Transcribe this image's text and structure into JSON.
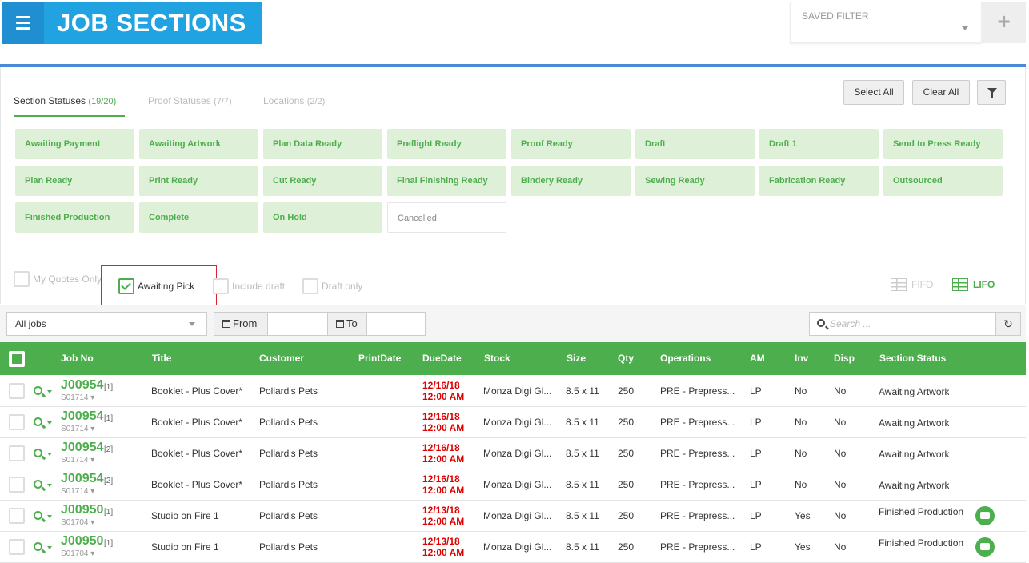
{
  "header": {
    "title": "JOB SECTIONS",
    "saved_filter_label": "SAVED FILTER",
    "add_label": "+"
  },
  "tabs": [
    {
      "label": "Section Statuses",
      "count": "(19/20)"
    },
    {
      "label": "Proof Statuses",
      "count": "(7/7)"
    },
    {
      "label": "Locations",
      "count": "(2/2)"
    }
  ],
  "actions": {
    "select_all": "Select All",
    "clear_all": "Clear All"
  },
  "statuses": [
    {
      "label": "Awaiting Payment",
      "on": true
    },
    {
      "label": "Awaiting Artwork",
      "on": true
    },
    {
      "label": "Plan Data Ready",
      "on": true
    },
    {
      "label": "Preflight Ready",
      "on": true
    },
    {
      "label": "Proof Ready",
      "on": true
    },
    {
      "label": "Draft",
      "on": true
    },
    {
      "label": "Draft 1",
      "on": true
    },
    {
      "label": "Send to Press Ready",
      "on": true
    },
    {
      "label": "Plan Ready",
      "on": true
    },
    {
      "label": "Print Ready",
      "on": true
    },
    {
      "label": "Cut Ready",
      "on": true
    },
    {
      "label": "Final Finishing Ready",
      "on": true
    },
    {
      "label": "Bindery Ready",
      "on": true
    },
    {
      "label": "Sewing Ready",
      "on": true
    },
    {
      "label": "Fabrication Ready",
      "on": true
    },
    {
      "label": "Outsourced",
      "on": true
    },
    {
      "label": "Finished Production",
      "on": true
    },
    {
      "label": "Complete",
      "on": true
    },
    {
      "label": "On Hold",
      "on": true
    },
    {
      "label": "Cancelled",
      "on": false
    }
  ],
  "options": {
    "my_quotes_only": "My Quotes Only",
    "awaiting_pick": "Awaiting Pick",
    "include_draft": "Include draft",
    "draft_only": "Draft only"
  },
  "view": {
    "fifo": "FIFO",
    "lifo": "LIFO"
  },
  "toolbar": {
    "jobs_select": "All jobs",
    "from_label": "From",
    "to_label": "To",
    "search_placeholder": "Search ..."
  },
  "columns": [
    "Job No",
    "Title",
    "Customer",
    "PrintDate",
    "DueDate",
    "Stock",
    "Size",
    "Qty",
    "Operations",
    "AM",
    "Inv",
    "Disp",
    "Section Status"
  ],
  "rows": [
    {
      "job": "J00954",
      "idx": "[1]",
      "sec": "S01714",
      "title": "Booklet - Plus Cover*",
      "customer": "Pollard's Pets",
      "due_date": "12/16/18",
      "due_time": "12:00 AM",
      "stock": "Monza Digi Gl...",
      "size": "8.5 x 11",
      "qty": "250",
      "ops": "PRE - Prepress...",
      "am": "LP",
      "inv": "No",
      "disp": "No",
      "status": "Awaiting Artwork",
      "chat": false
    },
    {
      "job": "J00954",
      "idx": "[1]",
      "sec": "S01714",
      "title": "Booklet - Plus Cover*",
      "customer": "Pollard's Pets",
      "due_date": "12/16/18",
      "due_time": "12:00 AM",
      "stock": "Monza Digi Gl...",
      "size": "8.5 x 11",
      "qty": "250",
      "ops": "PRE - Prepress...",
      "am": "LP",
      "inv": "No",
      "disp": "No",
      "status": "Awaiting Artwork",
      "chat": false
    },
    {
      "job": "J00954",
      "idx": "[2]",
      "sec": "S01714",
      "title": "Booklet - Plus Cover*",
      "customer": "Pollard's Pets",
      "due_date": "12/16/18",
      "due_time": "12:00 AM",
      "stock": "Monza Digi Gl...",
      "size": "8.5 x 11",
      "qty": "250",
      "ops": "PRE - Prepress...",
      "am": "LP",
      "inv": "No",
      "disp": "No",
      "status": "Awaiting Artwork",
      "chat": false
    },
    {
      "job": "J00954",
      "idx": "[2]",
      "sec": "S01714",
      "title": "Booklet - Plus Cover*",
      "customer": "Pollard's Pets",
      "due_date": "12/16/18",
      "due_time": "12:00 AM",
      "stock": "Monza Digi Gl...",
      "size": "8.5 x 11",
      "qty": "250",
      "ops": "PRE - Prepress...",
      "am": "LP",
      "inv": "No",
      "disp": "No",
      "status": "Awaiting Artwork",
      "chat": false
    },
    {
      "job": "J00950",
      "idx": "[1]",
      "sec": "S01704",
      "title": "Studio on Fire 1",
      "customer": "Pollard's Pets",
      "due_date": "12/13/18",
      "due_time": "12:00 AM",
      "stock": "Monza Digi Gl...",
      "size": "8.5 x 11",
      "qty": "250",
      "ops": "PRE - Prepress...",
      "am": "LP",
      "inv": "Yes",
      "disp": "No",
      "status": "Finished Production",
      "chat": true
    },
    {
      "job": "J00950",
      "idx": "[1]",
      "sec": "S01704",
      "title": "Studio on Fire 1",
      "customer": "Pollard's Pets",
      "due_date": "12/13/18",
      "due_time": "12:00 AM",
      "stock": "Monza Digi Gl...",
      "size": "8.5 x 11",
      "qty": "250",
      "ops": "PRE - Prepress...",
      "am": "LP",
      "inv": "Yes",
      "disp": "No",
      "status": "Finished Production",
      "chat": true
    }
  ],
  "colors": {
    "accent_green": "#4cae4c",
    "brand_blue": "#22a3e1",
    "due_red": "#e00000"
  }
}
